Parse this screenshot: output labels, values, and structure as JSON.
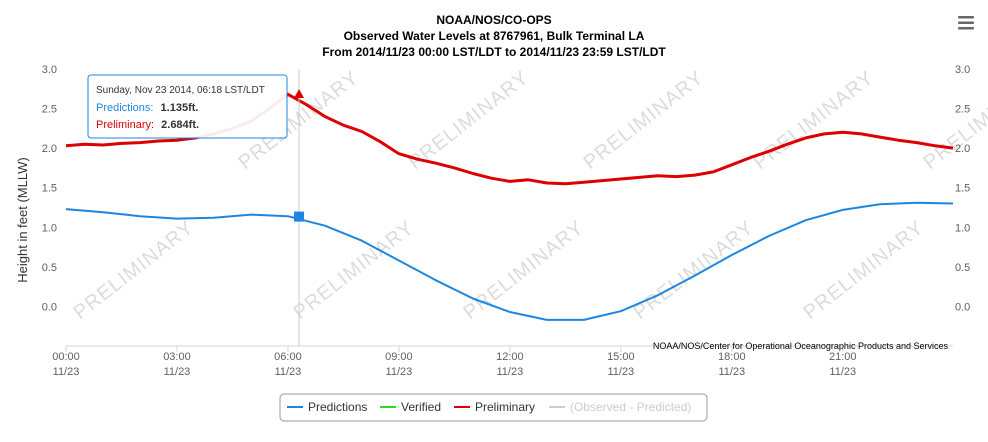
{
  "chart_data": {
    "type": "line",
    "title": "NOAA/NOS/CO-OPS",
    "subtitle": "Observed Water Levels at 8767961, Bulk Terminal LA",
    "subtitle2": "From 2014/11/23 00:00 LST/LDT to 2014/11/23 23:59 LST/LDT",
    "ylabel": "Height in feet (MLLW)",
    "ylim": [
      -0.5,
      3.0
    ],
    "xlim": [
      0,
      23.98
    ],
    "y_ticks": [
      "3.0",
      "2.5",
      "2.0",
      "1.5",
      "1.0",
      "0.5",
      "0.0"
    ],
    "y_tick_values": [
      3.0,
      2.5,
      2.0,
      1.5,
      1.0,
      0.5,
      0.0
    ],
    "x_ticks": [
      {
        "time": "00:00",
        "date": "11/23",
        "hour": 0
      },
      {
        "time": "03:00",
        "date": "11/23",
        "hour": 3
      },
      {
        "time": "06:00",
        "date": "11/23",
        "hour": 6
      },
      {
        "time": "09:00",
        "date": "11/23",
        "hour": 9
      },
      {
        "time": "12:00",
        "date": "11/23",
        "hour": 12
      },
      {
        "time": "15:00",
        "date": "11/23",
        "hour": 15
      },
      {
        "time": "18:00",
        "date": "11/23",
        "hour": 18
      },
      {
        "time": "21:00",
        "date": "11/23",
        "hour": 21
      }
    ],
    "series": [
      {
        "name": "Predictions",
        "color": "#1c87e0",
        "x": [
          0,
          1,
          2,
          3,
          4,
          5,
          6,
          7,
          8,
          9,
          10,
          11,
          12,
          13,
          14,
          15,
          16,
          17,
          18,
          19,
          20,
          21,
          22,
          23,
          23.98
        ],
        "y": [
          1.23,
          1.19,
          1.14,
          1.11,
          1.12,
          1.16,
          1.14,
          1.02,
          0.83,
          0.58,
          0.33,
          0.1,
          -0.07,
          -0.17,
          -0.17,
          -0.06,
          0.14,
          0.39,
          0.65,
          0.89,
          1.09,
          1.22,
          1.29,
          1.31,
          1.3
        ]
      },
      {
        "name": "Verified",
        "color": "#22dd22",
        "x": [],
        "y": []
      },
      {
        "name": "Preliminary",
        "color": "#dd0000",
        "x": [
          0,
          0.5,
          1,
          1.5,
          2,
          2.5,
          3,
          3.5,
          4,
          4.5,
          5,
          5.5,
          6,
          6.5,
          7,
          7.5,
          8,
          8.5,
          9,
          9.5,
          10,
          10.5,
          11,
          11.5,
          12,
          12.5,
          13,
          13.5,
          14,
          14.5,
          15,
          15.5,
          16,
          16.5,
          17,
          17.5,
          18,
          18.5,
          19,
          19.5,
          20,
          20.5,
          21,
          21.5,
          22,
          22.5,
          23,
          23.5,
          23.98
        ],
        "y": [
          2.03,
          2.05,
          2.04,
          2.06,
          2.07,
          2.09,
          2.1,
          2.13,
          2.18,
          2.25,
          2.34,
          2.5,
          2.68,
          2.55,
          2.4,
          2.29,
          2.21,
          2.08,
          1.93,
          1.86,
          1.81,
          1.75,
          1.68,
          1.62,
          1.58,
          1.6,
          1.56,
          1.55,
          1.57,
          1.59,
          1.61,
          1.63,
          1.65,
          1.64,
          1.66,
          1.7,
          1.79,
          1.88,
          1.96,
          2.05,
          2.13,
          2.18,
          2.2,
          2.18,
          2.14,
          2.1,
          2.07,
          2.03,
          2.0
        ]
      }
    ],
    "tooltip": {
      "header": "Sunday, Nov 23 2014, 06:18 LST/LDT",
      "hour": 6.3,
      "rows": [
        {
          "label": "Predictions:",
          "value": "1.135ft.",
          "color": "#1c87e0",
          "y": 1.135
        },
        {
          "label": "Preliminary:",
          "value": "2.684ft.",
          "color": "#dd0000",
          "y": 2.684
        }
      ]
    },
    "watermark": "PRELIMINARY",
    "grid": false,
    "legend_position": "bottom-center",
    "legend": [
      {
        "label": "Predictions",
        "color": "#1c87e0",
        "muted": false
      },
      {
        "label": "Verified",
        "color": "#22dd22",
        "muted": false
      },
      {
        "label": "Preliminary",
        "color": "#dd0000",
        "muted": false
      },
      {
        "label": "(Observed - Predicted)",
        "color": "#cccccc",
        "muted": true
      }
    ],
    "credit": "NOAA/NOS/Center for Operational Oceanographic Products and Services"
  },
  "menu_icon": "hamburger-menu-icon"
}
